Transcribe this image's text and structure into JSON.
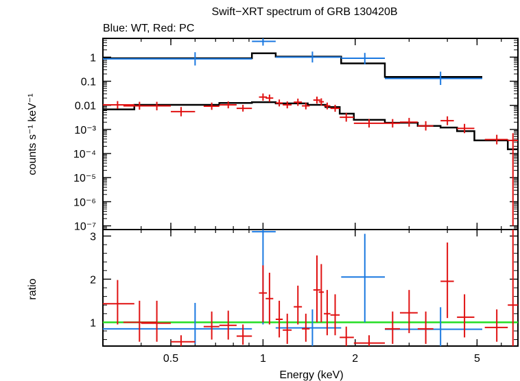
{
  "chart_data": {
    "type": "scatter",
    "title": "Swift−XRT spectrum of GRB 130420B",
    "subtitle": "Blue: WT, Red: PC",
    "xlabel": "Energy (keV)",
    "xscale": "log",
    "xlim": [
      0.3,
      6.8
    ],
    "x_ticks": [
      {
        "value": 0.5,
        "label": "0.5"
      },
      {
        "value": 1,
        "label": "1"
      },
      {
        "value": 2,
        "label": "2"
      },
      {
        "value": 5,
        "label": "5"
      }
    ],
    "colors": {
      "wt": "#1a78e0",
      "pc": "#e01010",
      "model": "#000000",
      "unity": "#22dd22"
    },
    "top_panel": {
      "ylabel": "counts s⁻¹ keV⁻¹",
      "yscale": "log",
      "ylim": [
        7e-08,
        6
      ],
      "y_ticks": [
        {
          "value": 1,
          "label": "1"
        },
        {
          "value": 0.1,
          "label": "0.1"
        },
        {
          "value": 0.01,
          "label": "0.01"
        },
        {
          "value": 0.001,
          "label": "10⁻³"
        },
        {
          "value": 0.0001,
          "label": "10⁻⁴"
        },
        {
          "value": 1e-05,
          "label": "10⁻⁵"
        },
        {
          "value": 1e-06,
          "label": "10⁻⁶"
        },
        {
          "value": 1e-07,
          "label": "10⁻⁷"
        }
      ],
      "series": [
        {
          "name": "WT",
          "color": "#1a78e0",
          "points": [
            {
              "xlo": 0.3,
              "xhi": 0.92,
              "x": 0.6,
              "y": 0.85,
              "ylo": 0.45,
              "yhi": 1.6
            },
            {
              "xlo": 0.92,
              "xhi": 1.1,
              "x": 1.0,
              "y": 4.5,
              "ylo": 3.0,
              "yhi": 6.0
            },
            {
              "xlo": 1.1,
              "xhi": 1.8,
              "x": 1.45,
              "y": 1.0,
              "ylo": 0.6,
              "yhi": 1.7
            },
            {
              "xlo": 1.8,
              "xhi": 2.5,
              "x": 2.15,
              "y": 0.9,
              "ylo": 0.5,
              "yhi": 1.5
            },
            {
              "xlo": 2.5,
              "xhi": 5.2,
              "x": 3.8,
              "y": 0.13,
              "ylo": 0.07,
              "yhi": 0.25
            }
          ],
          "model": [
            [
              0.3,
              0.9
            ],
            [
              0.92,
              0.9
            ],
            [
              0.92,
              1.45
            ],
            [
              1.1,
              1.45
            ],
            [
              1.1,
              1.05
            ],
            [
              1.8,
              1.05
            ],
            [
              1.8,
              0.55
            ],
            [
              2.5,
              0.55
            ],
            [
              2.5,
              0.15
            ],
            [
              5.2,
              0.15
            ]
          ]
        },
        {
          "name": "PC",
          "color": "#e01010",
          "points": [
            {
              "xlo": 0.3,
              "xhi": 0.38,
              "x": 0.335,
              "y": 0.0105,
              "ylo": 0.0072,
              "yhi": 0.015
            },
            {
              "xlo": 0.35,
              "xhi": 0.45,
              "x": 0.395,
              "y": 0.0095,
              "ylo": 0.0066,
              "yhi": 0.014
            },
            {
              "xlo": 0.4,
              "xhi": 0.5,
              "x": 0.45,
              "y": 0.0095,
              "ylo": 0.0062,
              "yhi": 0.014
            },
            {
              "xlo": 0.5,
              "xhi": 0.6,
              "x": 0.54,
              "y": 0.0055,
              "ylo": 0.0035,
              "yhi": 0.0085
            },
            {
              "xlo": 0.64,
              "xhi": 0.72,
              "x": 0.68,
              "y": 0.0092,
              "ylo": 0.0065,
              "yhi": 0.013
            },
            {
              "xlo": 0.72,
              "xhi": 0.82,
              "x": 0.77,
              "y": 0.0105,
              "ylo": 0.0075,
              "yhi": 0.0145
            },
            {
              "xlo": 0.82,
              "xhi": 0.92,
              "x": 0.86,
              "y": 0.0075,
              "ylo": 0.0055,
              "yhi": 0.0105
            },
            {
              "xlo": 0.97,
              "xhi": 1.03,
              "x": 1.0,
              "y": 0.022,
              "ylo": 0.0155,
              "yhi": 0.031
            },
            {
              "xlo": 1.02,
              "xhi": 1.08,
              "x": 1.05,
              "y": 0.02,
              "ylo": 0.014,
              "yhi": 0.028
            },
            {
              "xlo": 1.1,
              "xhi": 1.16,
              "x": 1.13,
              "y": 0.0125,
              "ylo": 0.009,
              "yhi": 0.0175
            },
            {
              "xlo": 1.16,
              "xhi": 1.24,
              "x": 1.2,
              "y": 0.0105,
              "ylo": 0.0075,
              "yhi": 0.0145
            },
            {
              "xlo": 1.26,
              "xhi": 1.34,
              "x": 1.3,
              "y": 0.0135,
              "ylo": 0.0095,
              "yhi": 0.019
            },
            {
              "xlo": 1.34,
              "xhi": 1.42,
              "x": 1.38,
              "y": 0.0095,
              "ylo": 0.0068,
              "yhi": 0.013
            },
            {
              "xlo": 1.46,
              "xhi": 1.54,
              "x": 1.5,
              "y": 0.0165,
              "ylo": 0.0118,
              "yhi": 0.023
            },
            {
              "xlo": 1.52,
              "xhi": 1.58,
              "x": 1.55,
              "y": 0.014,
              "ylo": 0.0098,
              "yhi": 0.0195
            },
            {
              "xlo": 1.58,
              "xhi": 1.66,
              "x": 1.62,
              "y": 0.0095,
              "ylo": 0.0068,
              "yhi": 0.013
            },
            {
              "xlo": 1.66,
              "xhi": 1.78,
              "x": 1.72,
              "y": 0.0075,
              "ylo": 0.0054,
              "yhi": 0.0105
            },
            {
              "xlo": 1.78,
              "xhi": 1.98,
              "x": 1.87,
              "y": 0.0032,
              "ylo": 0.0021,
              "yhi": 0.0048
            },
            {
              "xlo": 1.98,
              "xhi": 2.5,
              "x": 2.22,
              "y": 0.0018,
              "ylo": 0.0012,
              "yhi": 0.0027
            },
            {
              "xlo": 2.5,
              "xhi": 2.8,
              "x": 2.65,
              "y": 0.0018,
              "ylo": 0.0012,
              "yhi": 0.0027
            },
            {
              "xlo": 2.8,
              "xhi": 3.2,
              "x": 3.0,
              "y": 0.002,
              "ylo": 0.0013,
              "yhi": 0.003
            },
            {
              "xlo": 3.2,
              "xhi": 3.6,
              "x": 3.4,
              "y": 0.0014,
              "ylo": 0.0009,
              "yhi": 0.0022
            },
            {
              "xlo": 3.8,
              "xhi": 4.2,
              "x": 4.0,
              "y": 0.0023,
              "ylo": 0.0015,
              "yhi": 0.0035
            },
            {
              "xlo": 4.3,
              "xhi": 4.9,
              "x": 4.55,
              "y": 0.0011,
              "ylo": 0.0007,
              "yhi": 0.0017
            },
            {
              "xlo": 5.3,
              "xhi": 6.3,
              "x": 5.8,
              "y": 0.00038,
              "ylo": 0.00024,
              "yhi": 0.0006
            },
            {
              "xlo": 6.3,
              "xhi": 6.8,
              "x": 6.55,
              "y": 0.00035,
              "ylo": 1e-07,
              "yhi": 0.0007
            }
          ],
          "model": [
            [
              0.3,
              0.0068
            ],
            [
              0.38,
              0.0068
            ],
            [
              0.38,
              0.0105
            ],
            [
              0.72,
              0.0105
            ],
            [
              0.72,
              0.0125
            ],
            [
              0.92,
              0.0125
            ],
            [
              0.92,
              0.0135
            ],
            [
              1.1,
              0.0135
            ],
            [
              1.1,
              0.012
            ],
            [
              1.4,
              0.012
            ],
            [
              1.4,
              0.0105
            ],
            [
              1.6,
              0.0105
            ],
            [
              1.6,
              0.0085
            ],
            [
              1.78,
              0.0085
            ],
            [
              1.78,
              0.0045
            ],
            [
              1.98,
              0.0045
            ],
            [
              1.98,
              0.0025
            ],
            [
              2.5,
              0.0025
            ],
            [
              2.5,
              0.0019
            ],
            [
              3.2,
              0.0019
            ],
            [
              3.2,
              0.0014
            ],
            [
              3.8,
              0.0014
            ],
            [
              3.8,
              0.0012
            ],
            [
              4.3,
              0.0012
            ],
            [
              4.3,
              0.00085
            ],
            [
              4.9,
              0.00085
            ],
            [
              4.9,
              0.00035
            ],
            [
              6.3,
              0.00035
            ],
            [
              6.3,
              0.00015
            ],
            [
              6.8,
              0.00015
            ]
          ]
        }
      ]
    },
    "bottom_panel": {
      "ylabel": "ratio",
      "yscale": "linear",
      "ylim": [
        0.45,
        3.15
      ],
      "y_ticks": [
        {
          "value": 1,
          "label": "1"
        },
        {
          "value": 2,
          "label": "2"
        },
        {
          "value": 3,
          "label": "3"
        }
      ],
      "reference_line": 1,
      "series": [
        {
          "name": "WT",
          "color": "#1a78e0",
          "points": [
            {
              "xlo": 0.3,
              "xhi": 0.92,
              "x": 0.6,
              "y": 0.85,
              "ylo": 0.5,
              "yhi": 1.45
            },
            {
              "xlo": 0.92,
              "xhi": 1.1,
              "x": 1.0,
              "y": 3.1,
              "ylo": 0.95,
              "yhi": 3.15
            },
            {
              "xlo": 1.1,
              "xhi": 1.8,
              "x": 1.45,
              "y": 0.87,
              "ylo": 0.45,
              "yhi": 1.3
            },
            {
              "xlo": 1.8,
              "xhi": 2.5,
              "x": 2.15,
              "y": 2.05,
              "ylo": 1.0,
              "yhi": 3.05
            },
            {
              "xlo": 2.5,
              "xhi": 5.2,
              "x": 3.8,
              "y": 0.84,
              "ylo": 0.45,
              "yhi": 1.35
            }
          ]
        },
        {
          "name": "PC",
          "color": "#e01010",
          "points": [
            {
              "xlo": 0.3,
              "xhi": 0.38,
              "x": 0.335,
              "y": 1.43,
              "ylo": 0.95,
              "yhi": 1.98
            },
            {
              "xlo": 0.35,
              "xhi": 0.45,
              "x": 0.395,
              "y": 1.0,
              "ylo": 0.55,
              "yhi": 1.5
            },
            {
              "xlo": 0.4,
              "xhi": 0.5,
              "x": 0.45,
              "y": 0.98,
              "ylo": 0.55,
              "yhi": 1.5
            },
            {
              "xlo": 0.5,
              "xhi": 0.6,
              "x": 0.54,
              "y": 0.55,
              "ylo": 0.45,
              "yhi": 0.7
            },
            {
              "xlo": 0.64,
              "xhi": 0.72,
              "x": 0.68,
              "y": 0.9,
              "ylo": 0.6,
              "yhi": 1.25
            },
            {
              "xlo": 0.72,
              "xhi": 0.82,
              "x": 0.77,
              "y": 0.93,
              "ylo": 0.6,
              "yhi": 1.27
            },
            {
              "xlo": 0.82,
              "xhi": 0.92,
              "x": 0.86,
              "y": 0.68,
              "ylo": 0.48,
              "yhi": 0.95
            },
            {
              "xlo": 0.97,
              "xhi": 1.03,
              "x": 1.0,
              "y": 1.68,
              "ylo": 1.0,
              "yhi": 2.32
            },
            {
              "xlo": 1.02,
              "xhi": 1.08,
              "x": 1.05,
              "y": 1.55,
              "ylo": 0.95,
              "yhi": 2.15
            },
            {
              "xlo": 1.1,
              "xhi": 1.16,
              "x": 1.13,
              "y": 1.07,
              "ylo": 0.65,
              "yhi": 1.5
            },
            {
              "xlo": 1.16,
              "xhi": 1.24,
              "x": 1.2,
              "y": 0.82,
              "ylo": 0.5,
              "yhi": 1.2
            },
            {
              "xlo": 1.26,
              "xhi": 1.34,
              "x": 1.3,
              "y": 1.36,
              "ylo": 0.95,
              "yhi": 1.85
            },
            {
              "xlo": 1.34,
              "xhi": 1.42,
              "x": 1.38,
              "y": 0.85,
              "ylo": 0.55,
              "yhi": 1.2
            },
            {
              "xlo": 1.46,
              "xhi": 1.54,
              "x": 1.5,
              "y": 1.75,
              "ylo": 1.0,
              "yhi": 2.55
            },
            {
              "xlo": 1.52,
              "xhi": 1.58,
              "x": 1.55,
              "y": 1.7,
              "ylo": 1.0,
              "yhi": 2.35
            },
            {
              "xlo": 1.58,
              "xhi": 1.66,
              "x": 1.62,
              "y": 1.2,
              "ylo": 0.7,
              "yhi": 1.75
            },
            {
              "xlo": 1.66,
              "xhi": 1.78,
              "x": 1.72,
              "y": 1.17,
              "ylo": 0.7,
              "yhi": 1.65
            },
            {
              "xlo": 1.78,
              "xhi": 1.98,
              "x": 1.87,
              "y": 0.65,
              "ylo": 0.45,
              "yhi": 0.9
            },
            {
              "xlo": 1.98,
              "xhi": 2.5,
              "x": 2.22,
              "y": 0.52,
              "ylo": 0.45,
              "yhi": 0.7
            },
            {
              "xlo": 2.5,
              "xhi": 2.8,
              "x": 2.65,
              "y": 0.85,
              "ylo": 0.5,
              "yhi": 1.25
            },
            {
              "xlo": 2.8,
              "xhi": 3.2,
              "x": 3.0,
              "y": 1.22,
              "ylo": 0.75,
              "yhi": 1.75
            },
            {
              "xlo": 3.2,
              "xhi": 3.6,
              "x": 3.4,
              "y": 0.85,
              "ylo": 0.5,
              "yhi": 1.25
            },
            {
              "xlo": 3.8,
              "xhi": 4.2,
              "x": 4.0,
              "y": 1.95,
              "ylo": 1.1,
              "yhi": 2.85
            },
            {
              "xlo": 4.3,
              "xhi": 4.9,
              "x": 4.55,
              "y": 1.12,
              "ylo": 0.65,
              "yhi": 1.65
            },
            {
              "xlo": 5.3,
              "xhi": 6.3,
              "x": 5.8,
              "y": 0.88,
              "ylo": 0.55,
              "yhi": 1.3
            },
            {
              "xlo": 6.3,
              "xhi": 6.8,
              "x": 6.55,
              "y": 1.4,
              "ylo": 0.45,
              "yhi": 3.15
            }
          ]
        }
      ]
    }
  }
}
